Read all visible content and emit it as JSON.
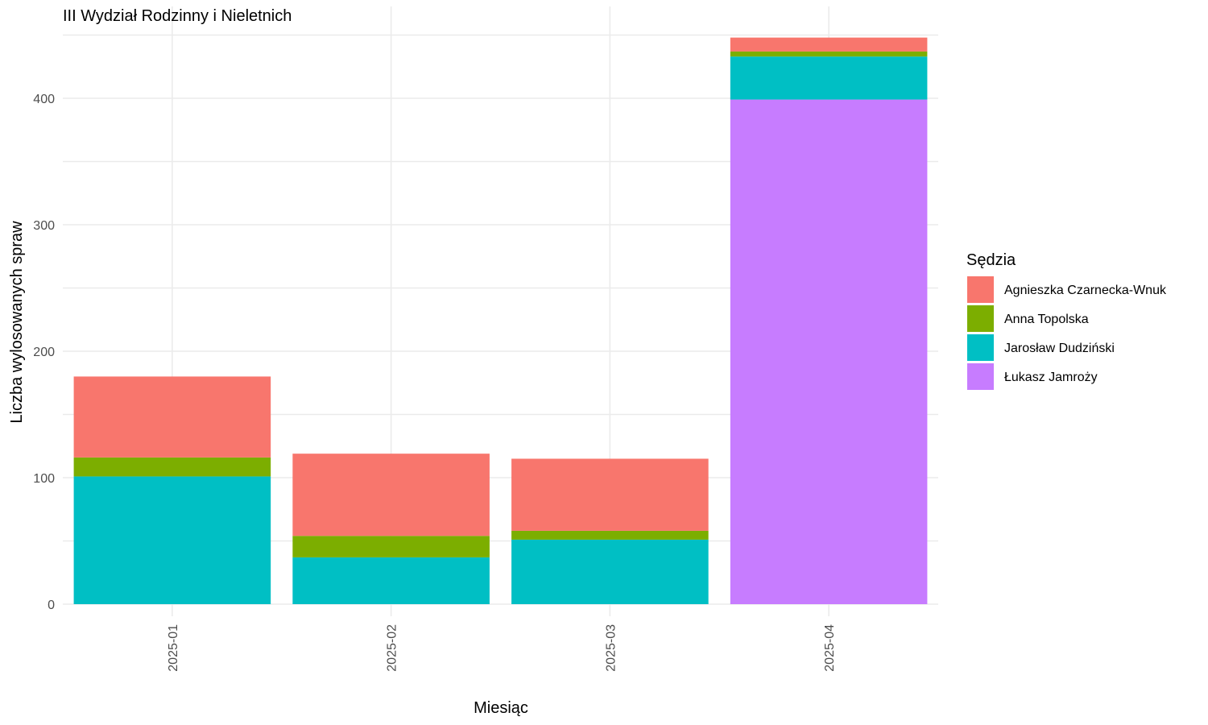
{
  "chart_data": {
    "type": "bar",
    "stacked": true,
    "title": "III Wydział Rodzinny i Nieletnich",
    "xlabel": "Miesiąc",
    "ylabel": "Liczba wylosowanych spraw",
    "ylim": [
      0,
      460
    ],
    "yticks": [
      0,
      100,
      200,
      300,
      400
    ],
    "categories": [
      "2025-01",
      "2025-02",
      "2025-03",
      "2025-04"
    ],
    "grid": true,
    "legend": {
      "title": "Sędzia",
      "position": "right"
    },
    "series": [
      {
        "name": "Łukasz Jamroży",
        "color": "#C77CFF",
        "values": [
          0,
          0,
          0,
          399
        ]
      },
      {
        "name": "Jarosław Dudziński",
        "color": "#00BFC4",
        "values": [
          101,
          37,
          51,
          34
        ]
      },
      {
        "name": "Anna Topolska",
        "color": "#7CAE00",
        "values": [
          15,
          17,
          7,
          4
        ]
      },
      {
        "name": "Agnieszka Czarnecka-Wnuk",
        "color": "#F8766D",
        "values": [
          64,
          65,
          57,
          11
        ]
      }
    ],
    "legend_order": [
      "Agnieszka Czarnecka-Wnuk",
      "Anna Topolska",
      "Jarosław Dudziński",
      "Łukasz Jamroży"
    ]
  }
}
